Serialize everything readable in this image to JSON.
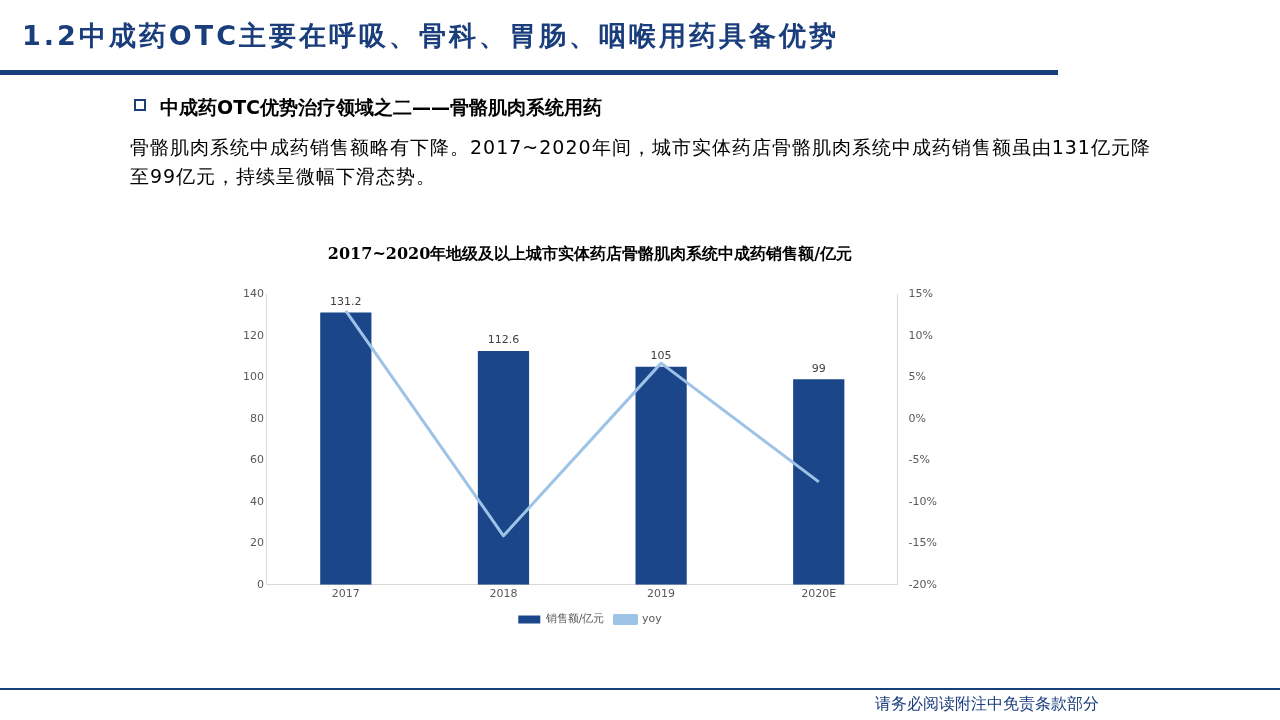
{
  "chart_data": {
    "type": "bar",
    "title": "2017~2020年地级及以上城市实体药店骨骼肌肉系统中成药销售额/亿元",
    "annotations": [
      "1.2中成药OTC主要在呼吸、骨科、胃肠、咽喉用药具备优势",
      "中成药OTC优势治疗领域之二——骨骼肌肉系统用药",
      "骨骼肌肉系统中成药销售额略有下降。2017~2020年间，城市实体药店骨骼肌肉系统中成药销售额虽由131亿元降至99亿元，持续呈微幅下滑态势。",
      "请务必阅读附注中免责条款部分"
    ],
    "categories": [
      "2017",
      "2018",
      "2019",
      "2020E"
    ],
    "series": [
      {
        "name": "销售额/亿元",
        "color": "#1b4689",
        "values": [
          131.2,
          112.6,
          105,
          99
        ],
        "value_labels": [
          "131.2",
          "112.6",
          "105",
          "99"
        ]
      },
      {
        "name": "yoy",
        "type": "line",
        "axis": "y2",
        "color": "#9dc3e6",
        "values": [
          13.0,
          -14.1,
          6.7,
          -7.6
        ]
      }
    ],
    "ylim": [
      0,
      140
    ],
    "yticks": [
      0,
      20,
      40,
      60,
      80,
      100,
      120,
      140
    ],
    "y2lim": [
      -20,
      15
    ],
    "y2ticks": [
      {
        "value": -20,
        "label": "-20%"
      },
      {
        "value": -15,
        "label": "-15%"
      },
      {
        "value": -10,
        "label": "-10%"
      },
      {
        "value": -5,
        "label": "-5%"
      },
      {
        "value": 0,
        "label": "0%"
      },
      {
        "value": 5,
        "label": "5%"
      },
      {
        "value": 10,
        "label": "10%"
      },
      {
        "value": 15,
        "label": "15%"
      }
    ],
    "grid": false,
    "legend": "bottom",
    "marker": "none",
    "line_style": "solid"
  }
}
